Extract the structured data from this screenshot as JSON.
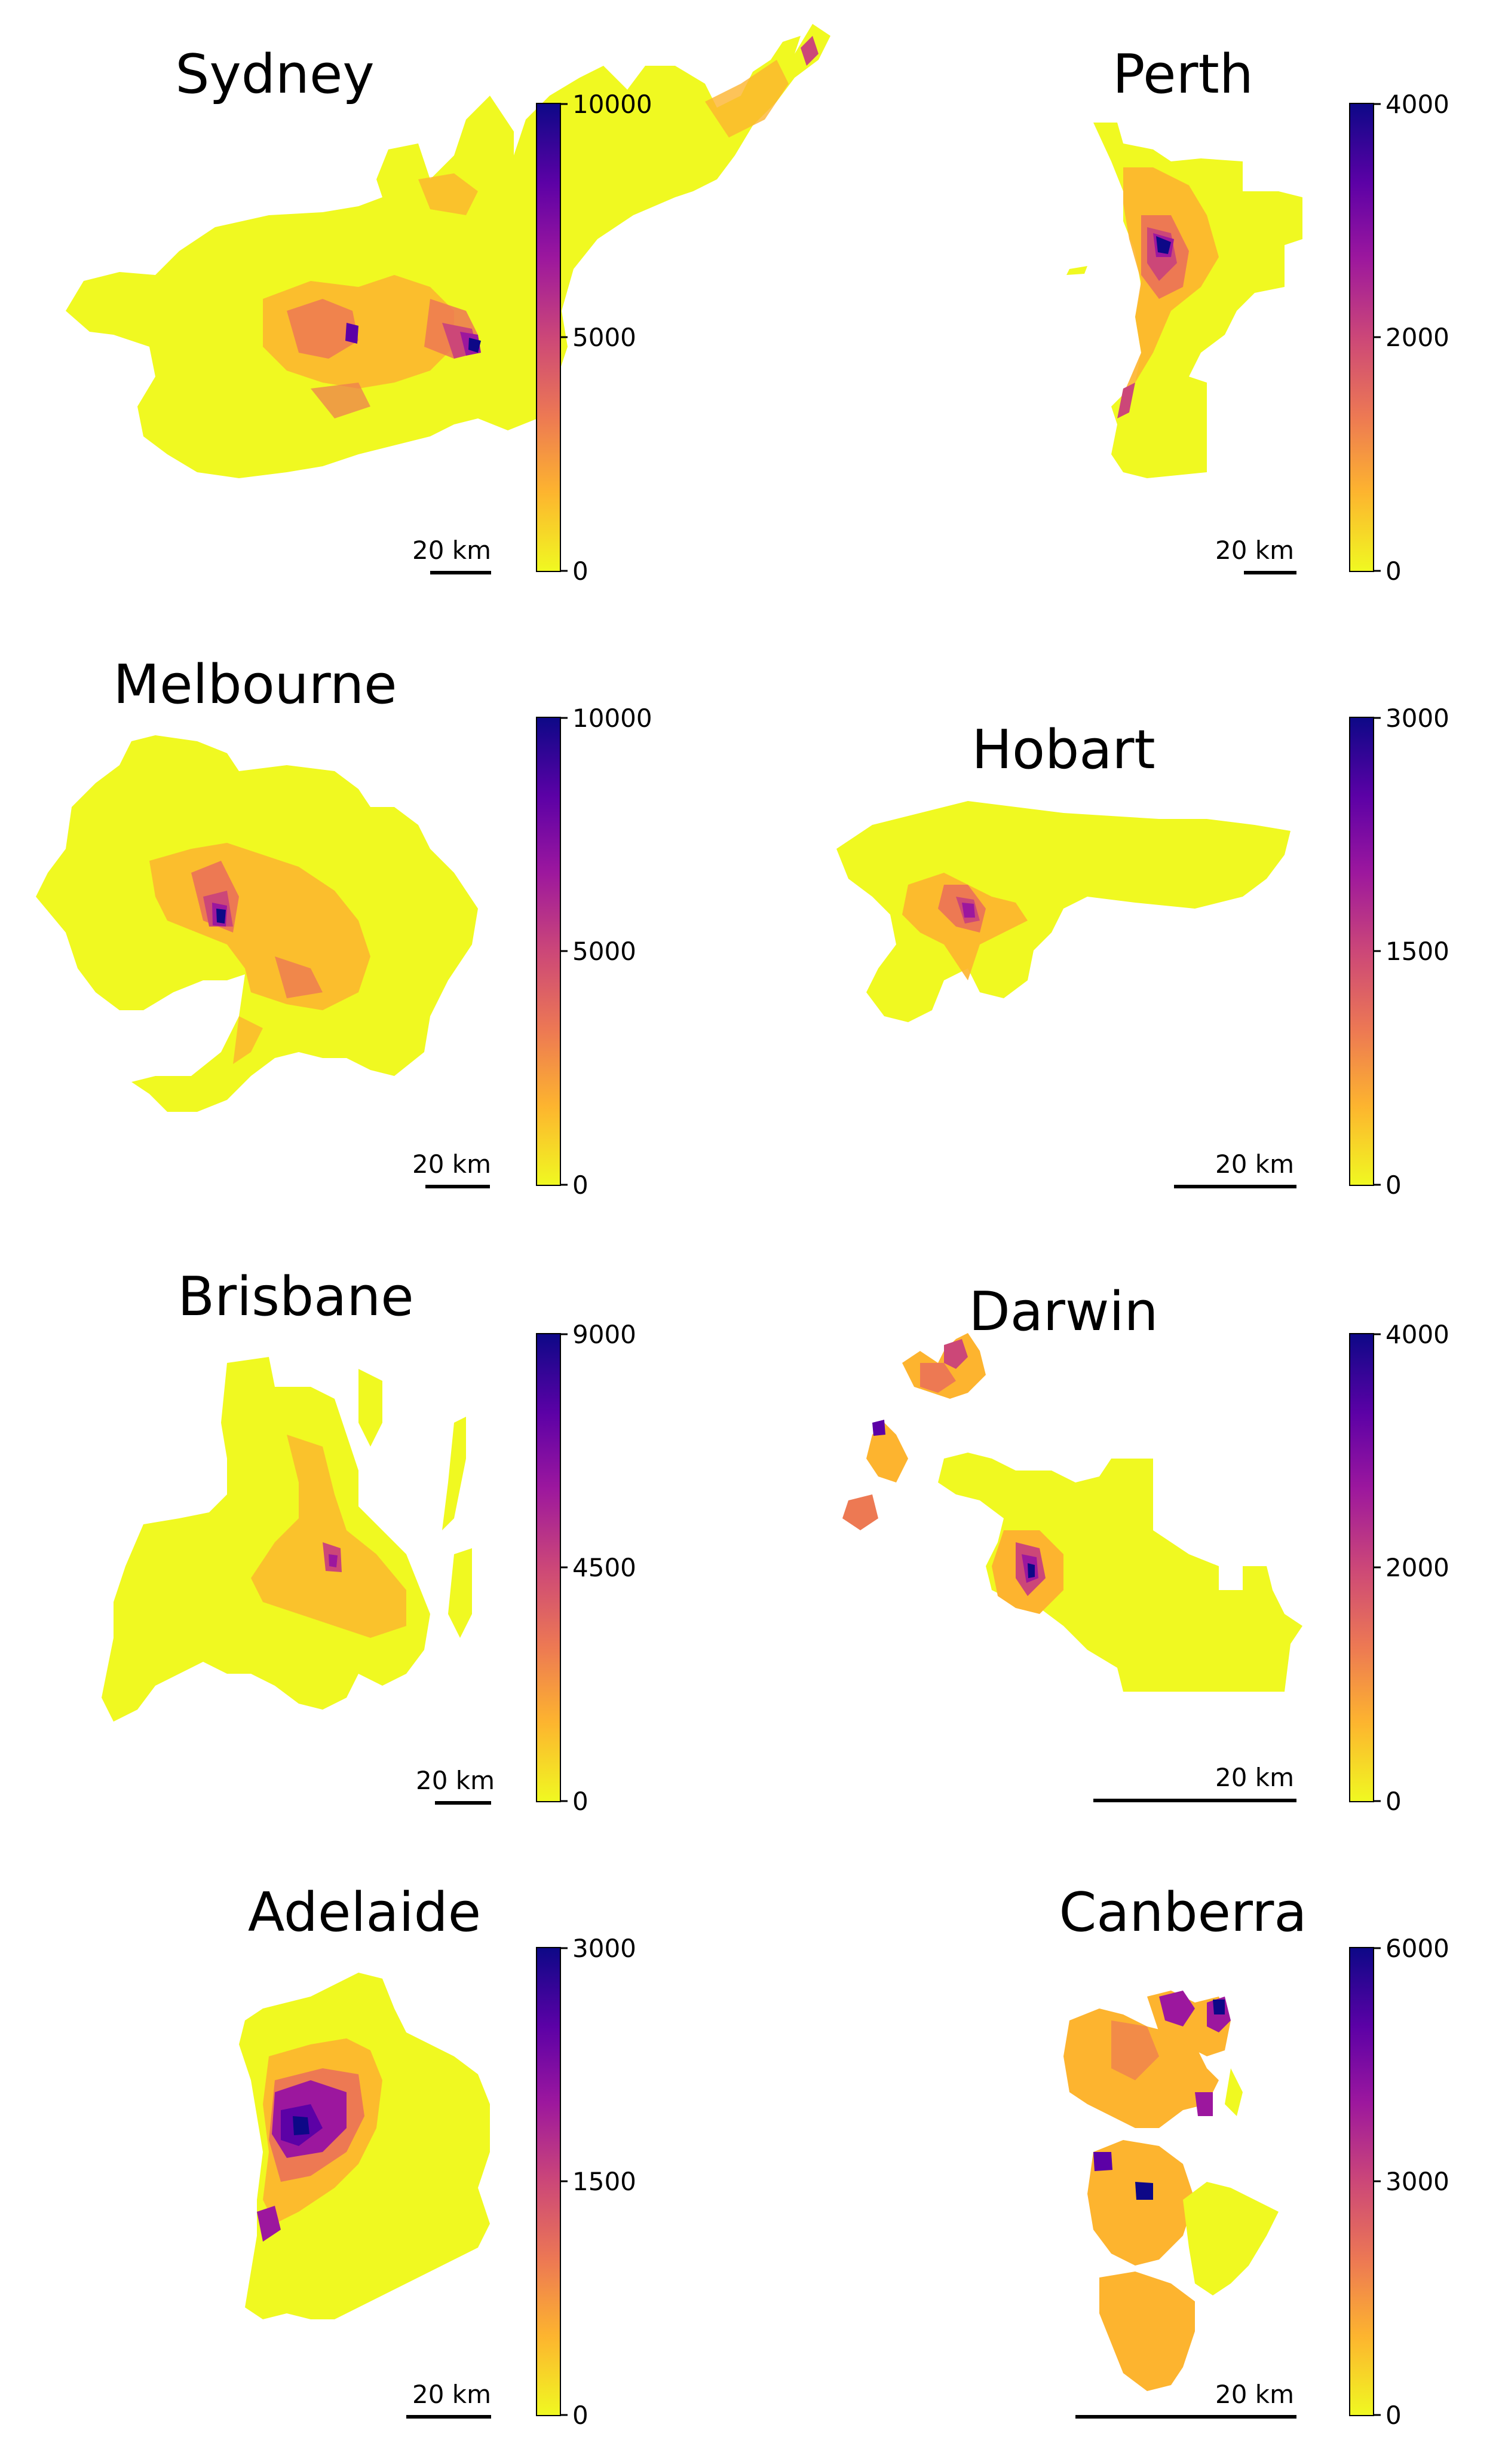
{
  "colors": {
    "colormap": "plasma",
    "colormap_stops": [
      "#f0f921",
      "#fdb42f",
      "#ed7953",
      "#cc4778",
      "#9c179e",
      "#5c01a6",
      "#0d0887"
    ],
    "background": "#ffffff"
  },
  "panels": [
    {
      "name": "Sydney",
      "colorbar": {
        "ticks": [
          "10000",
          "5000",
          "0"
        ]
      },
      "scale_bar": "20 km"
    },
    {
      "name": "Perth",
      "colorbar": {
        "ticks": [
          "4000",
          "2000",
          "0"
        ]
      },
      "scale_bar": "20 km"
    },
    {
      "name": "Melbourne",
      "colorbar": {
        "ticks": [
          "10000",
          "5000",
          "0"
        ]
      },
      "scale_bar": "20 km"
    },
    {
      "name": "Hobart",
      "colorbar": {
        "ticks": [
          "3000",
          "1500",
          "0"
        ]
      },
      "scale_bar": "20 km"
    },
    {
      "name": "Brisbane",
      "colorbar": {
        "ticks": [
          "9000",
          "4500",
          "0"
        ]
      },
      "scale_bar": "20 km"
    },
    {
      "name": "Darwin",
      "colorbar": {
        "ticks": [
          "4000",
          "2000",
          "0"
        ]
      },
      "scale_bar": "20 km"
    },
    {
      "name": "Adelaide",
      "colorbar": {
        "ticks": [
          "3000",
          "1500",
          "0"
        ]
      },
      "scale_bar": "20 km"
    },
    {
      "name": "Canberra",
      "colorbar": {
        "ticks": [
          "6000",
          "3000",
          "0"
        ]
      },
      "scale_bar": "20 km"
    }
  ]
}
